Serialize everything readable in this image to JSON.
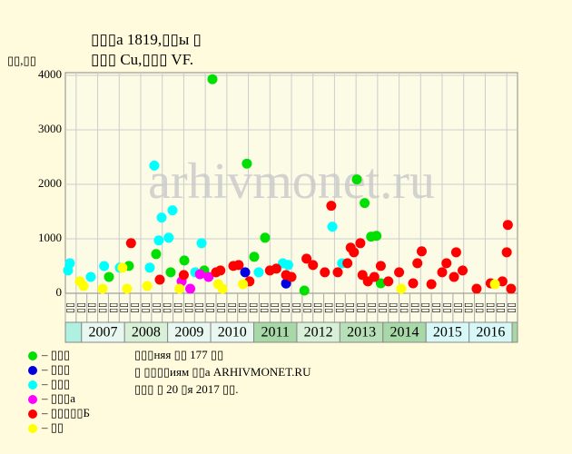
{
  "chart_data": {
    "type": "scatter",
    "title": "▯▯▯а 1819,▯▯ы ▯",
    "subtitle": "▯▯▯ Cu,▯▯▯ VF.",
    "y_label": "▯▯,▯▯",
    "watermark": "arhivmonet.ru",
    "xlim": [
      0,
      42
    ],
    "ylim": [
      0,
      4050
    ],
    "yticks": [
      0,
      1000,
      2000,
      3000,
      4000
    ],
    "grid": true,
    "column_labels": [
      "▯▯",
      "▯▯",
      "▯▯",
      "▯▯",
      "▯▯",
      "▯▯",
      "▯▯",
      "▯▯",
      "▯▯",
      "▯▯",
      "▯▯",
      "▯▯",
      "▯▯",
      "▯▯",
      "▯▯",
      "▯▯",
      "▯▯",
      "▯▯",
      "▯▯",
      "▯▯",
      "▯▯",
      "▯▯",
      "▯▯",
      "▯▯",
      "▯▯",
      "▯▯",
      "▯▯",
      "▯▯",
      "▯▯",
      "▯▯",
      "▯▯",
      "▯▯",
      "▯▯",
      "▯▯",
      "▯▯",
      "▯▯",
      "▯▯",
      "▯▯",
      "▯▯",
      "▯▯",
      "▯▯",
      "▯▯"
    ],
    "years": [
      "2007",
      "2008",
      "2009",
      "2010",
      "2011",
      "2012",
      "2013",
      "2014",
      "2015",
      "2016"
    ],
    "series": [
      {
        "name": "– ▯▯▯",
        "color": "#00e000",
        "x": [
          4.05,
          5.9,
          8.43,
          9.78,
          11.05,
          12.9,
          13.66,
          16.86,
          17.54,
          18.55,
          22.2,
          27.07,
          27.8,
          28.4,
          28.9,
          29.3
        ],
        "values": [
          301,
          502,
          720,
          385,
          602,
          418,
          3930,
          2380,
          670,
          1020,
          50,
          2090,
          1657,
          1040,
          1054,
          184
        ]
      },
      {
        "name": "– ▯▯▯",
        "color": "#0000e0",
        "x": [
          16.7,
          20.5
        ],
        "values": [
          385,
          180
        ]
      },
      {
        "name": "– ▯▯▯",
        "color": "#00ffff",
        "x": [
          0.25,
          0.42,
          2.36,
          3.6,
          5.06,
          7.84,
          8.26,
          8.68,
          8.94,
          9.6,
          9.95,
          12.06,
          12.65,
          17.96,
          20.2,
          20.7,
          24.8,
          25.7
        ],
        "values": [
          420,
          552,
          300,
          500,
          470,
          470,
          2343,
          970,
          1390,
          1020,
          1523,
          385,
          920,
          385,
          550,
          520,
          1222,
          550
        ]
      },
      {
        "name": "– ▯▯▯а",
        "color": "#ff00ff",
        "x": [
          10.8,
          11.6,
          12.5,
          13.3
        ],
        "values": [
          218,
          84,
          351,
          300
        ]
      },
      {
        "name": "– ▯▯▯▯▯Б",
        "color": "#ff0000",
        "x": [
          6.1,
          8.77,
          11.0,
          14.0,
          14.4,
          15.6,
          16.1,
          17.1,
          19.0,
          19.6,
          20.5,
          21.0,
          22.4,
          23.0,
          24.1,
          24.7,
          25.3,
          26.2,
          26.5,
          26.8,
          27.4,
          27.6,
          28.1,
          28.7,
          29.3,
          30.0,
          31.0,
          32.3,
          32.7,
          33.1,
          34.0,
          35.0,
          35.4,
          36.1,
          36.3,
          36.9,
          38.2,
          39.5,
          40.6,
          41.0,
          41.1,
          41.4
        ],
        "values": [
          920,
          250,
          335,
          385,
          418,
          502,
          519,
          218,
          418,
          452,
          335,
          300,
          636,
          519,
          385,
          1607,
          385,
          552,
          837,
          753,
          920,
          335,
          218,
          300,
          502,
          218,
          385,
          184,
          552,
          770,
          167,
          385,
          552,
          300,
          753,
          418,
          84,
          184,
          218,
          753,
          1255,
          84
        ]
      },
      {
        "name": "– ▯▯",
        "color": "#ffff00",
        "x": [
          1.35,
          1.69,
          3.46,
          5.3,
          5.73,
          7.6,
          10.6,
          14.2,
          14.6,
          16.5,
          31.2,
          39.9
        ],
        "values": [
          218,
          134,
          84,
          470,
          84,
          134,
          84,
          167,
          84,
          167,
          84,
          167
        ]
      }
    ],
    "notes": [
      "▯▯▯няя ▯▯ 177 ▯▯",
      "▯ ▯▯▯▯иям ▯▯а ARHIVMONET.RU",
      "▯▯▯ ▯ 20 ▯я 2017 ▯▯."
    ]
  }
}
